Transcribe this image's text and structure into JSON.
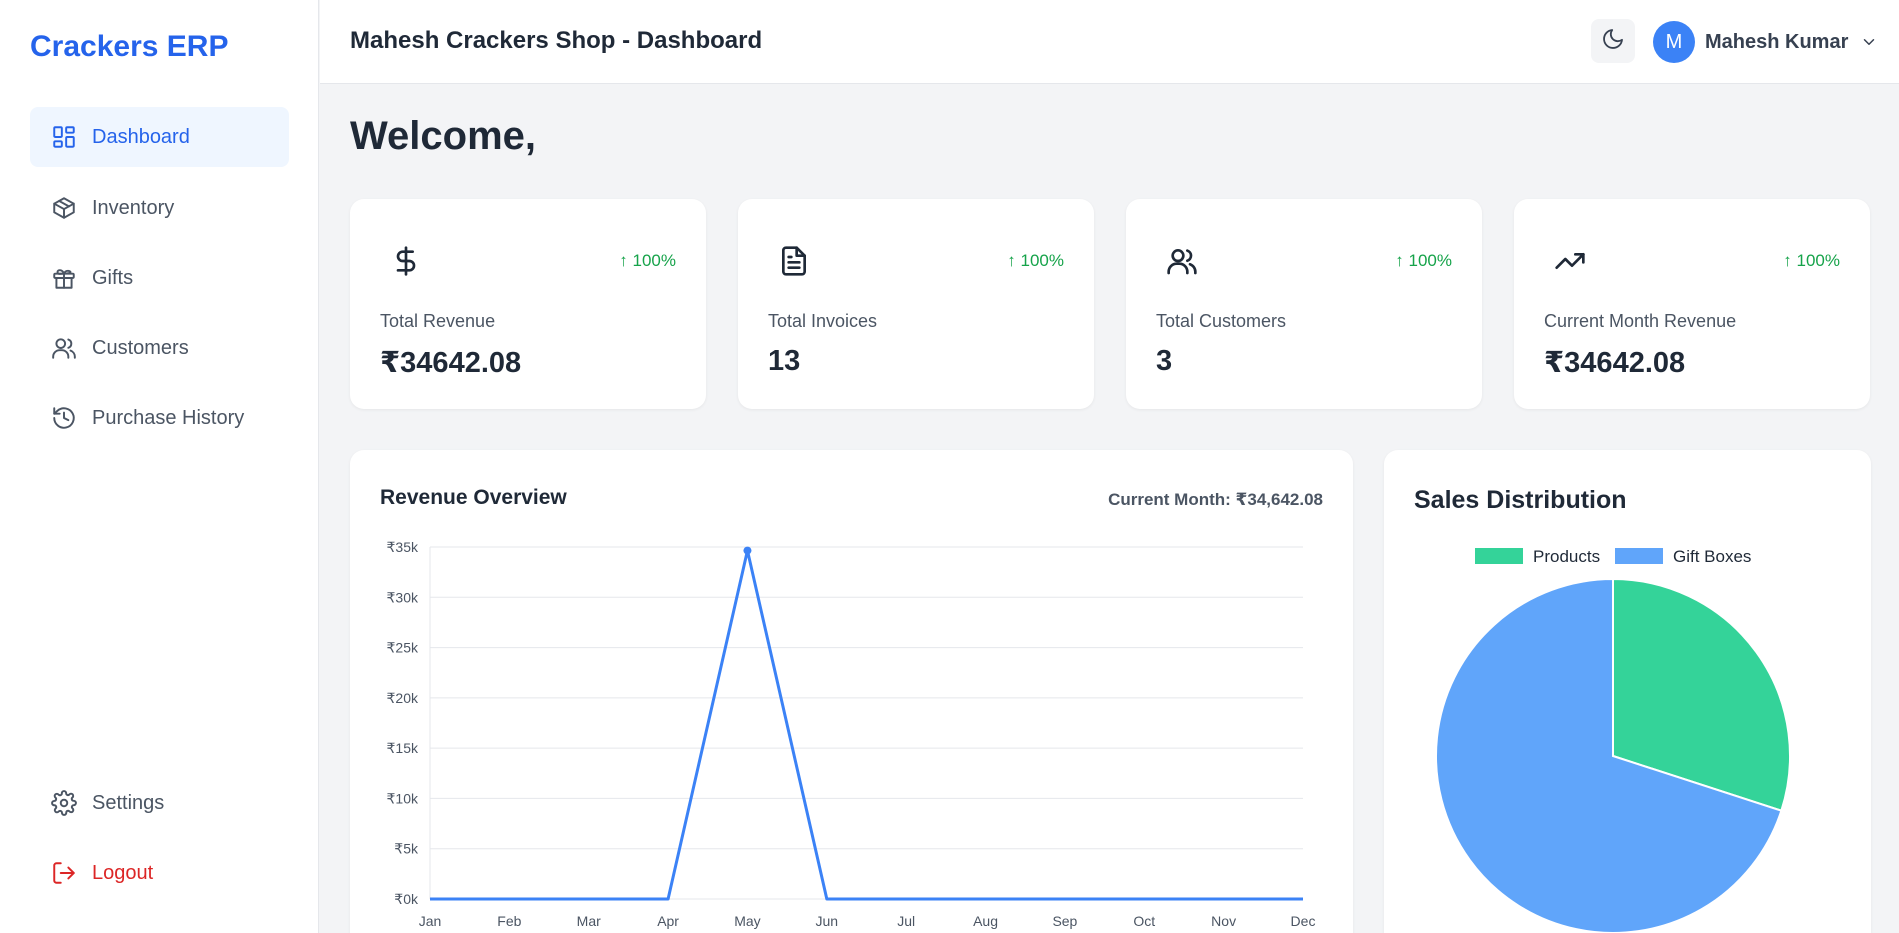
{
  "brand": "Crackers ERP",
  "sidebar": {
    "items": [
      {
        "label": "Dashboard",
        "icon": "dashboard-icon",
        "active": true
      },
      {
        "label": "Inventory",
        "icon": "package-icon"
      },
      {
        "label": "Gifts",
        "icon": "gift-icon"
      },
      {
        "label": "Customers",
        "icon": "users-icon"
      },
      {
        "label": "Purchase History",
        "icon": "history-icon"
      }
    ],
    "bottom": [
      {
        "label": "Settings",
        "icon": "gear-icon"
      },
      {
        "label": "Logout",
        "icon": "logout-icon"
      }
    ]
  },
  "header": {
    "title": "Mahesh Crackers Shop - Dashboard",
    "user": {
      "initial": "M",
      "name": "Mahesh Kumar"
    }
  },
  "welcome": "Welcome,",
  "stats": [
    {
      "label": "Total Revenue",
      "value": "₹34642.08",
      "change": "↑ 100%",
      "icon": "dollar-icon"
    },
    {
      "label": "Total Invoices",
      "value": "13",
      "change": "↑ 100%",
      "icon": "document-icon"
    },
    {
      "label": "Total Customers",
      "value": "3",
      "change": "↑ 100%",
      "icon": "users-icon"
    },
    {
      "label": "Current Month Revenue",
      "value": "₹34642.08",
      "change": "↑ 100%",
      "icon": "trending-up-icon"
    }
  ],
  "revenue": {
    "title": "Revenue Overview",
    "subtitle": "Current Month: ₹34,642.08"
  },
  "distribution": {
    "title": "Sales Distribution"
  },
  "colors": {
    "accent": "#2563eb",
    "line": "#3b82f6",
    "products": "#34d399",
    "gift_boxes": "#60a5fa",
    "positive": "#16a34a",
    "danger": "#dc2626"
  },
  "chart_data": [
    {
      "type": "line",
      "x": [
        "Jan",
        "Feb",
        "Mar",
        "Apr",
        "May",
        "Jun",
        "Jul",
        "Aug",
        "Sep",
        "Oct",
        "Nov",
        "Dec"
      ],
      "series": [
        {
          "values": [
            0,
            0,
            0,
            0,
            34642.08,
            0,
            0,
            0,
            0,
            0,
            0,
            0
          ]
        }
      ],
      "ylim": [
        0,
        35000
      ],
      "yticks": [
        "₹0k",
        "₹5k",
        "₹10k",
        "₹15k",
        "₹20k",
        "₹25k",
        "₹30k",
        "₹35k"
      ],
      "grid": true
    },
    {
      "type": "pie",
      "categories": [
        "Products",
        "Gift Boxes"
      ],
      "values": [
        30,
        70
      ],
      "legend": "top"
    }
  ]
}
